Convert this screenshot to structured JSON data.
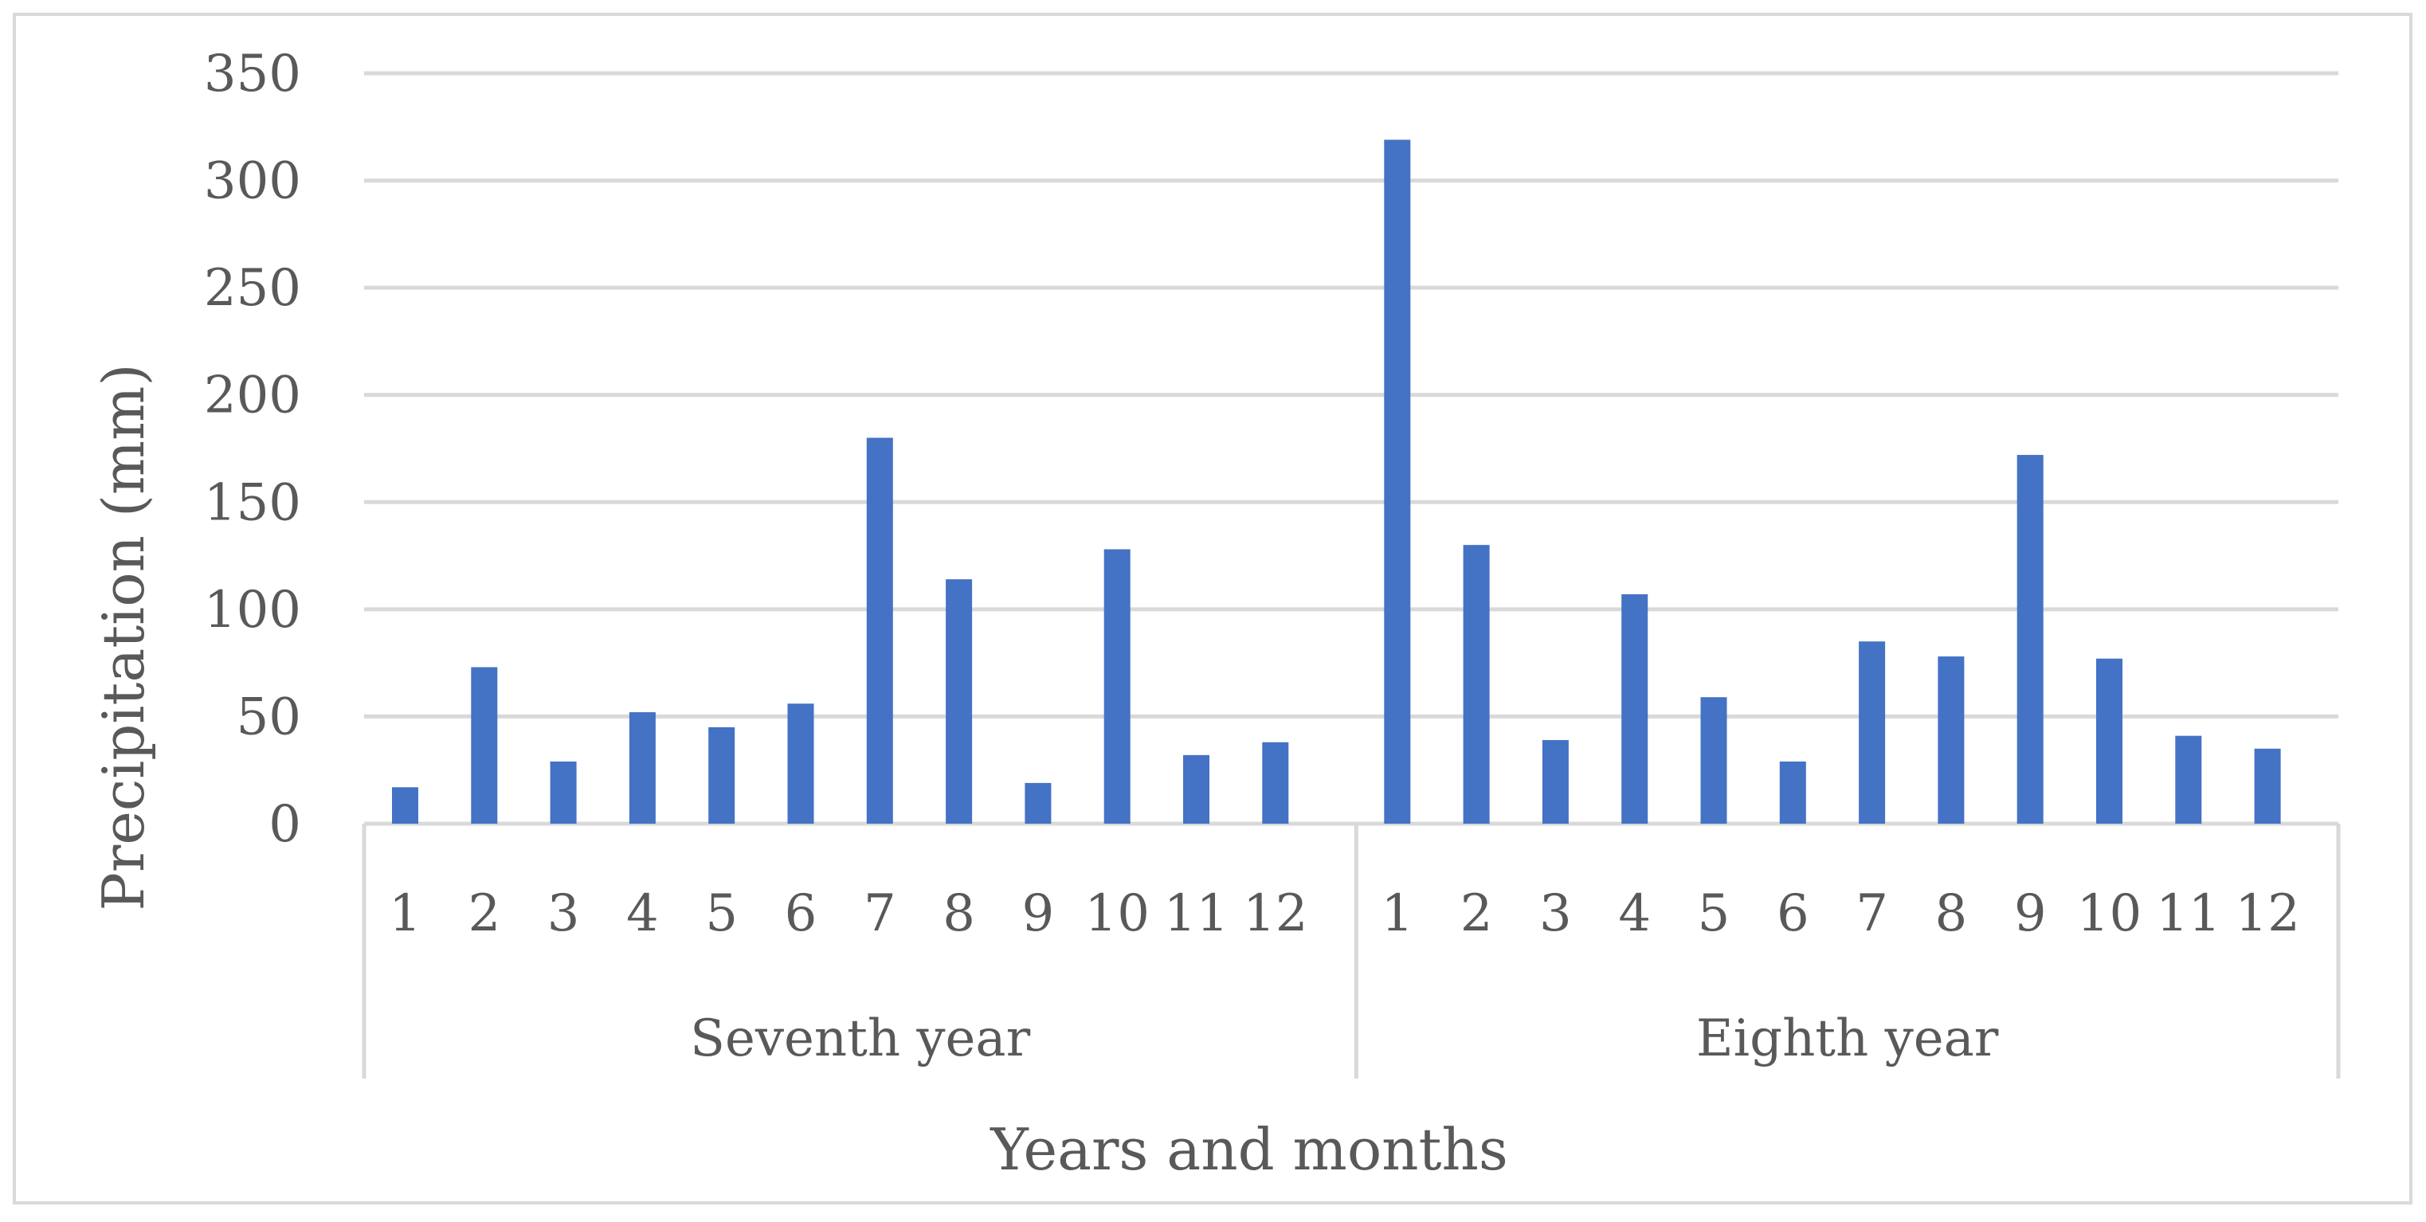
{
  "chart_data": {
    "type": "bar",
    "title": "",
    "xlabel": "Years and months",
    "ylabel": "Precipitation (mm)",
    "ylim": [
      0,
      350
    ],
    "yticks": [
      "0",
      "50",
      "100",
      "150",
      "200",
      "250",
      "300",
      "350"
    ],
    "grid": true,
    "legend": "none",
    "bar_color": "#4472C4",
    "groups": [
      {
        "label": "Seventh year",
        "categories": [
          "1",
          "2",
          "3",
          "4",
          "5",
          "6",
          "7",
          "8",
          "9",
          "10",
          "11",
          "12"
        ],
        "values": [
          17,
          73,
          29,
          52,
          45,
          56,
          180,
          114,
          19,
          128,
          32,
          38
        ]
      },
      {
        "label": "Eighth year",
        "categories": [
          "1",
          "2",
          "3",
          "4",
          "5",
          "6",
          "7",
          "8",
          "9",
          "10",
          "11",
          "12"
        ],
        "values": [
          319,
          130,
          39,
          107,
          59,
          29,
          85,
          78,
          172,
          77,
          41,
          35
        ]
      }
    ]
  }
}
